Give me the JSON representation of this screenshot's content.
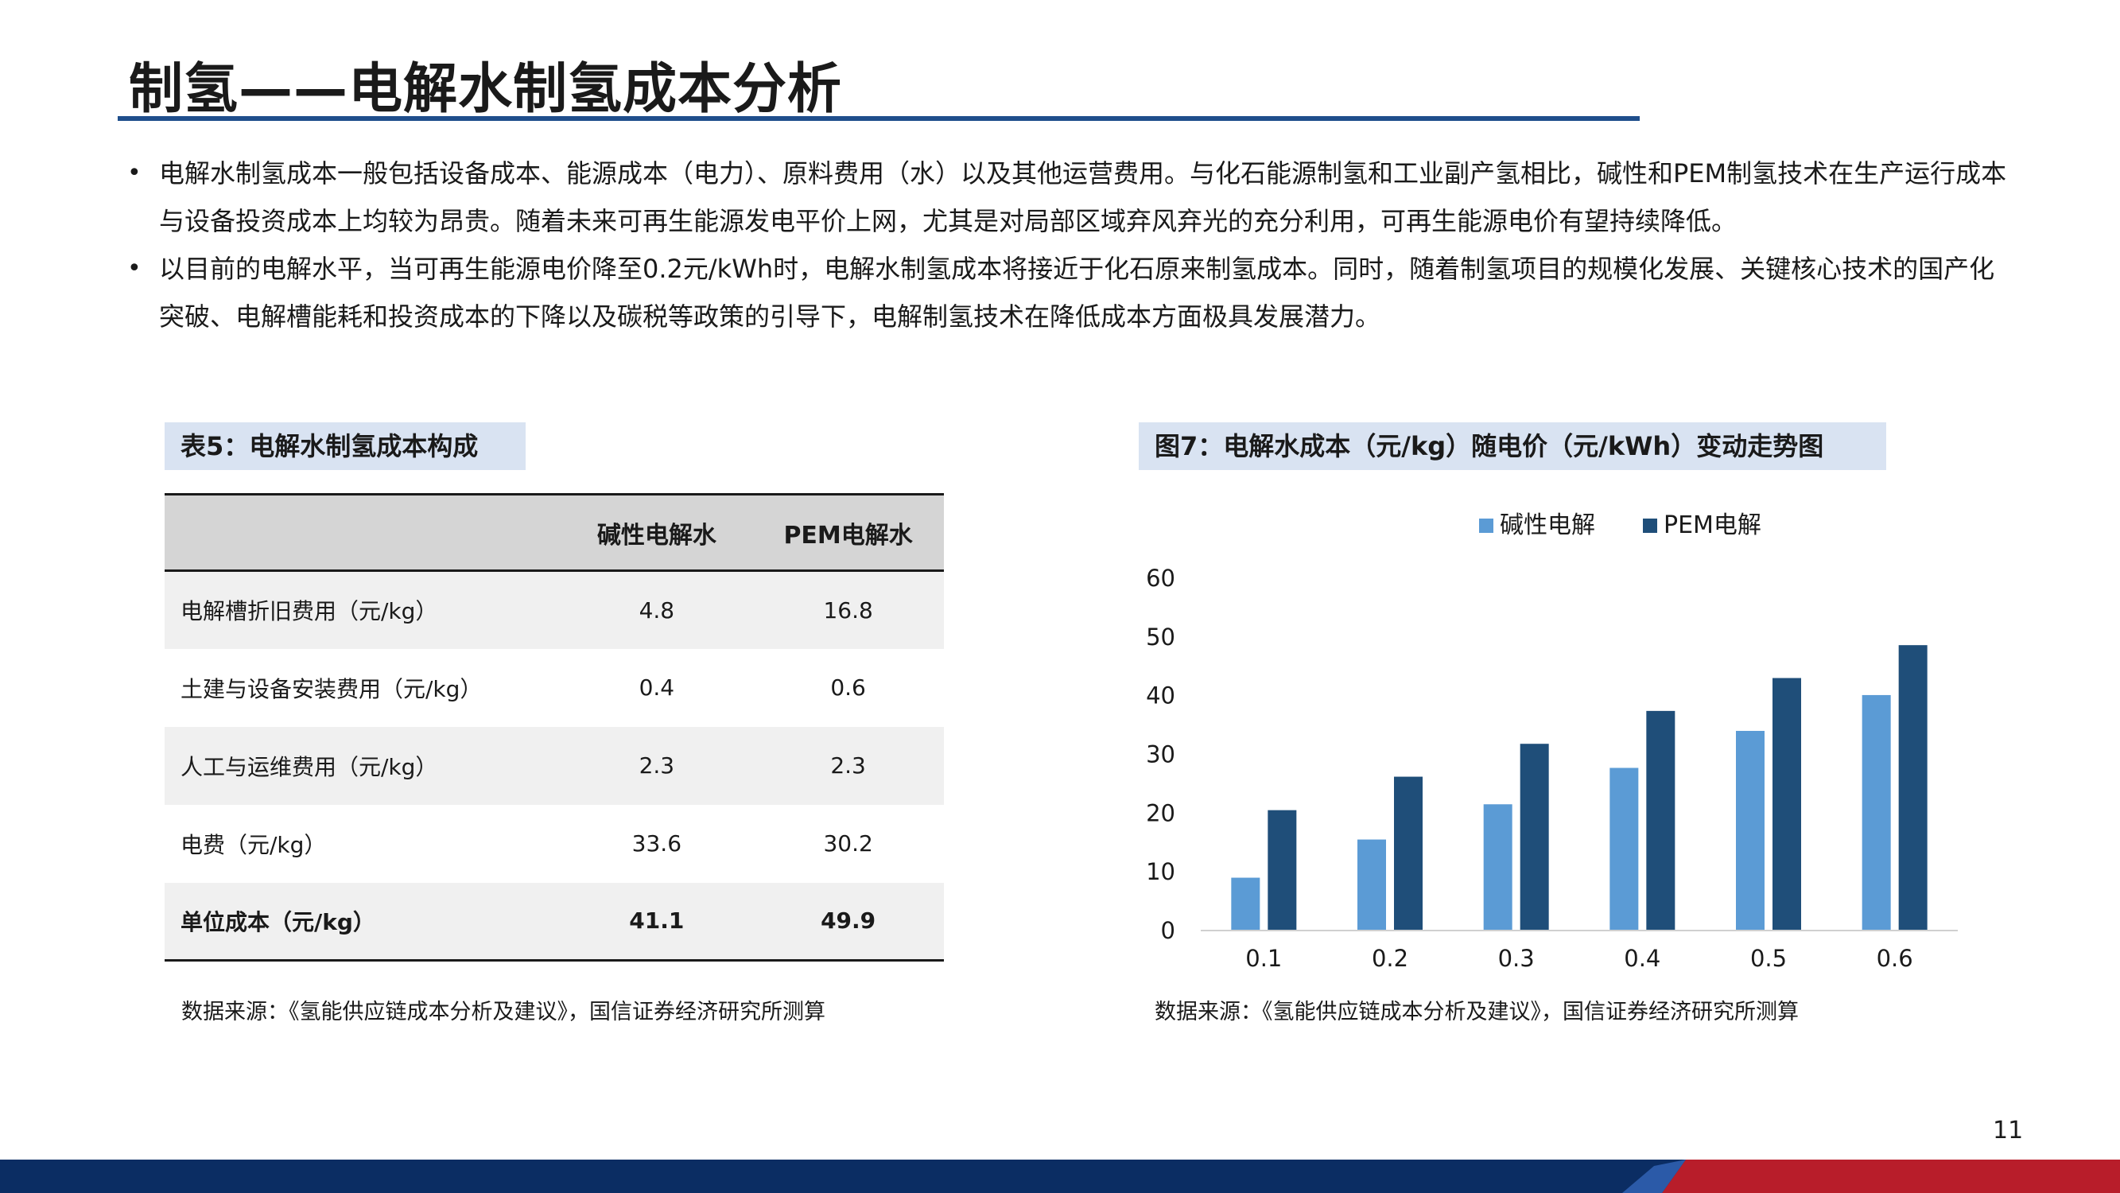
{
  "title": "制氢——电解水制氢成本分析",
  "bullets": [
    "电解水制氢成本一般包括设备成本、能源成本（电力）、原料费用（水）以及其他运营费用。与化石能源制氢和工业副产氢相比，碱性和PEM制氢技术在生产运行成本与设备投资成本上均较为昂贵。随着未来可再生能源发电平价上网，尤其是对局部区域弃风弃光的充分利用，可再生能源电价有望持续降低。",
    "以目前的电解水平，当可再生能源电价降至0.2元/kWh时，电解水制氢成本将接近于化石原来制氢成本。同时，随着制氢项目的规模化发展、关键核心技术的国产化突破、电解槽能耗和投资成本的下降以及碳税等政策的引导下，电解制氢技术在降低成本方面极具发展潜力。"
  ],
  "bullet_marker": "•",
  "table": {
    "label": "表5：电解水制氢成本构成",
    "headers": [
      "",
      "碱性电解水",
      "PEM电解水"
    ],
    "rows": [
      {
        "label": "电解槽折旧费用（元/kg）",
        "alk": "4.8",
        "pem": "16.8"
      },
      {
        "label": "土建与设备安装费用（元/kg）",
        "alk": "0.4",
        "pem": "0.6"
      },
      {
        "label": "人工与运维费用（元/kg）",
        "alk": "2.3",
        "pem": "2.3"
      },
      {
        "label": "电费（元/kg）",
        "alk": "33.6",
        "pem": "30.2"
      },
      {
        "label": "单位成本（元/kg）",
        "alk": "41.1",
        "pem": "49.9"
      }
    ],
    "source": "数据来源：《氢能供应链成本分析及建议》，国信证券经济研究所测算"
  },
  "figure": {
    "label": "图7：电解水成本（元/kg）随电价（元/kWh）变动走势图",
    "source": "数据来源：《氢能供应链成本分析及建议》，国信证券经济研究所测算"
  },
  "chart_data": {
    "type": "bar",
    "categories": [
      "0.1",
      "0.2",
      "0.3",
      "0.4",
      "0.5",
      "0.6"
    ],
    "series": [
      {
        "name": "碱性电解",
        "color": "#5b9bd5",
        "values": [
          9,
          15.5,
          21.5,
          27.7,
          34,
          40.1
        ]
      },
      {
        "name": "PEM电解",
        "color": "#1f4e79",
        "values": [
          20.5,
          26.2,
          31.8,
          37.4,
          43,
          48.6
        ]
      }
    ],
    "yticks": [
      0,
      10,
      20,
      30,
      40,
      50,
      60
    ],
    "ylim": [
      0,
      60
    ],
    "legend": "top-center",
    "grid": false
  },
  "page_number": "11",
  "colors": {
    "accent": "#1f4e8c",
    "label_bg": "#d9e3f2",
    "footer_blue": "#0b2d63",
    "footer_red": "#b81d2a"
  }
}
